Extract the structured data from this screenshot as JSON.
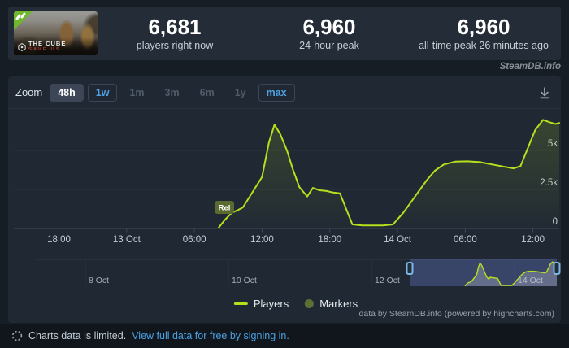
{
  "header": {
    "game": {
      "title": "THE CUBE",
      "subtitle": "SAVE US",
      "badge_icon": "new-release-ribbon",
      "logo_icon": "hexagon-emblem"
    },
    "stats": [
      {
        "value": "6,681",
        "label": "players right now"
      },
      {
        "value": "6,960",
        "label": "24-hour peak"
      },
      {
        "value": "6,960",
        "label": "all-time peak 26 minutes ago"
      }
    ]
  },
  "watermark": "SteamDB.info",
  "toolbar": {
    "zoom_label": "Zoom",
    "zoom_buttons": [
      {
        "label": "48h",
        "state": "selected"
      },
      {
        "label": "1w",
        "state": "active"
      },
      {
        "label": "1m",
        "state": "disabled"
      },
      {
        "label": "3m",
        "state": "disabled"
      },
      {
        "label": "6m",
        "state": "disabled"
      },
      {
        "label": "1y",
        "state": "disabled"
      },
      {
        "label": "max",
        "state": "active"
      }
    ],
    "download_icon": "download-icon"
  },
  "chart_data": {
    "type": "line",
    "title": "",
    "xlabel": "",
    "ylabel": "Players",
    "series_color": "#b7e01c",
    "x_unit_hours_from": "12 Oct 14:00",
    "x_range": [
      0,
      48.33
    ],
    "ylim": [
      0,
      7300
    ],
    "grid": true,
    "y_ticks": [
      {
        "v": 0,
        "label": "0"
      },
      {
        "v": 2500,
        "label": "2.5k"
      },
      {
        "v": 5000,
        "label": "5k"
      }
    ],
    "x_ticks": [
      {
        "h": 4,
        "label": "18:00"
      },
      {
        "h": 10,
        "label": "13 Oct"
      },
      {
        "h": 16,
        "label": "06:00"
      },
      {
        "h": 22,
        "label": "12:00"
      },
      {
        "h": 28,
        "label": "18:00"
      },
      {
        "h": 34,
        "label": "14 Oct"
      },
      {
        "h": 40,
        "label": "06:00"
      },
      {
        "h": 46,
        "label": "12:00"
      }
    ],
    "points": [
      [
        18.15,
        50
      ],
      [
        18.7,
        550
      ],
      [
        19.3,
        1000
      ],
      [
        19.9,
        1200
      ],
      [
        20.3,
        1350
      ],
      [
        21.3,
        2500
      ],
      [
        22.0,
        3300
      ],
      [
        22.6,
        5500
      ],
      [
        23.1,
        6650
      ],
      [
        23.6,
        6050
      ],
      [
        24.2,
        5000
      ],
      [
        24.7,
        3850
      ],
      [
        25.3,
        2650
      ],
      [
        26.0,
        2050
      ],
      [
        26.5,
        2600
      ],
      [
        27.1,
        2450
      ],
      [
        27.7,
        2400
      ],
      [
        28.3,
        2300
      ],
      [
        28.9,
        2250
      ],
      [
        30.0,
        260
      ],
      [
        30.9,
        200
      ],
      [
        32.7,
        200
      ],
      [
        33.6,
        260
      ],
      [
        34.5,
        1000
      ],
      [
        35.2,
        1700
      ],
      [
        35.9,
        2400
      ],
      [
        36.6,
        3100
      ],
      [
        37.3,
        3700
      ],
      [
        38.1,
        4100
      ],
      [
        39.1,
        4280
      ],
      [
        40.2,
        4300
      ],
      [
        41.3,
        4250
      ],
      [
        42.4,
        4100
      ],
      [
        43.5,
        3950
      ],
      [
        44.3,
        3850
      ],
      [
        44.9,
        4000
      ],
      [
        45.6,
        5250
      ],
      [
        46.2,
        6300
      ],
      [
        46.9,
        6960
      ],
      [
        47.5,
        6800
      ],
      [
        48.0,
        6700
      ],
      [
        48.33,
        6760
      ]
    ],
    "markers": [
      {
        "h": 18.15,
        "label": "Rel",
        "color": "#5a6b31"
      }
    ],
    "legend": [
      {
        "label": "Players",
        "swatch": "line",
        "color": "#b7e01c"
      },
      {
        "label": "Markers",
        "swatch": "dot",
        "color": "#5c7036"
      }
    ],
    "navigator": {
      "x_ticks": [
        {
          "d": 0,
          "label": "8 Oct"
        },
        {
          "d": 2,
          "label": "10 Oct"
        },
        {
          "d": 4,
          "label": "12 Oct"
        },
        {
          "d": 6,
          "label": "14 Oct"
        }
      ],
      "selection_color": "#6577be",
      "handle_color": "#7db7e4"
    }
  },
  "credits": "data by SteamDB.info (powered by highcharts.com)",
  "footer": {
    "icon": "limited-data-dashed-circle-icon",
    "notice": "Charts data is limited.",
    "link": "View full data for free by signing in."
  }
}
